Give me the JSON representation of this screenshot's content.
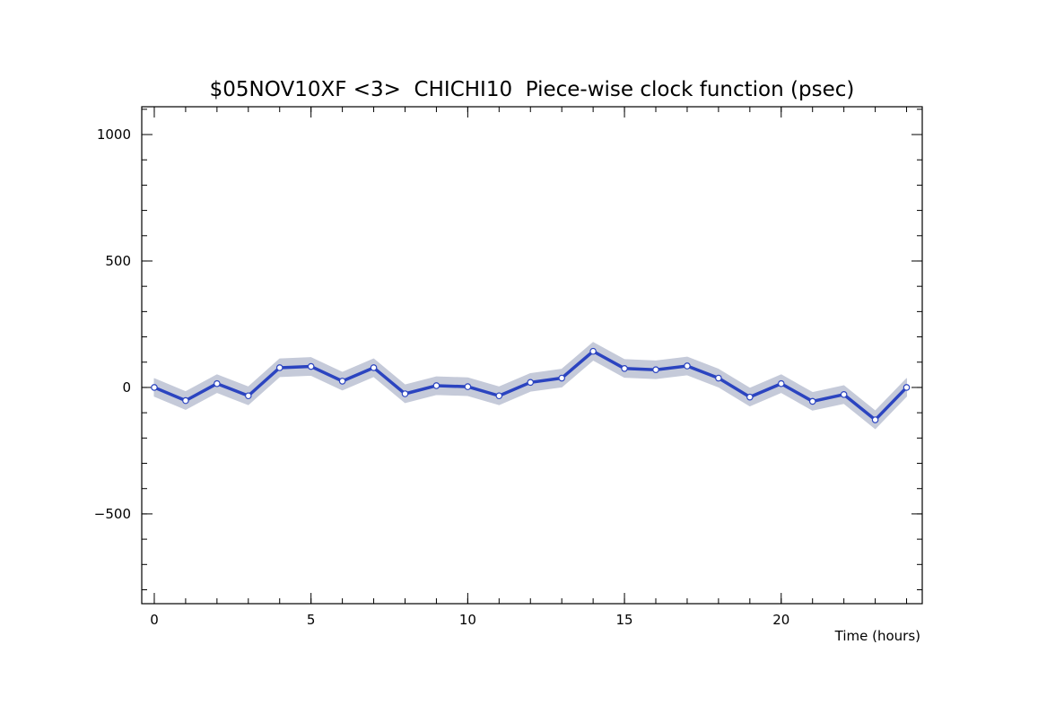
{
  "chart_data": {
    "type": "line",
    "title": "$05NOV10XF <3>  CHICHI10  Piece-wise clock function (psec)",
    "xlabel": "Time (hours)",
    "ylabel": "",
    "xlim": [
      -0.4,
      24.5
    ],
    "ylim": [
      -855,
      1110
    ],
    "x_ticks": [
      0,
      5,
      10,
      15,
      20
    ],
    "y_ticks": [
      -500,
      0,
      500,
      1000
    ],
    "x_minor_step": 1,
    "y_minor_step": 100,
    "grid": false,
    "legend": "none",
    "colors": {
      "line": "#2b44c0",
      "band": "#c5cad9",
      "marker_fill": "#ffffff",
      "marker_edge": "#2b44c0"
    },
    "series": [
      {
        "x": [
          0,
          1,
          2,
          3,
          4,
          5,
          6,
          7,
          8,
          9,
          10,
          11,
          12,
          13,
          14,
          15,
          16,
          17,
          18,
          19,
          20,
          21,
          22,
          23,
          24
        ],
        "values": [
          0,
          -52,
          15,
          -33,
          78,
          83,
          25,
          78,
          -25,
          7,
          3,
          -33,
          20,
          37,
          143,
          75,
          70,
          85,
          37,
          -38,
          15,
          -55,
          -28,
          -128,
          0
        ],
        "band_halfwidth": 35
      }
    ]
  }
}
